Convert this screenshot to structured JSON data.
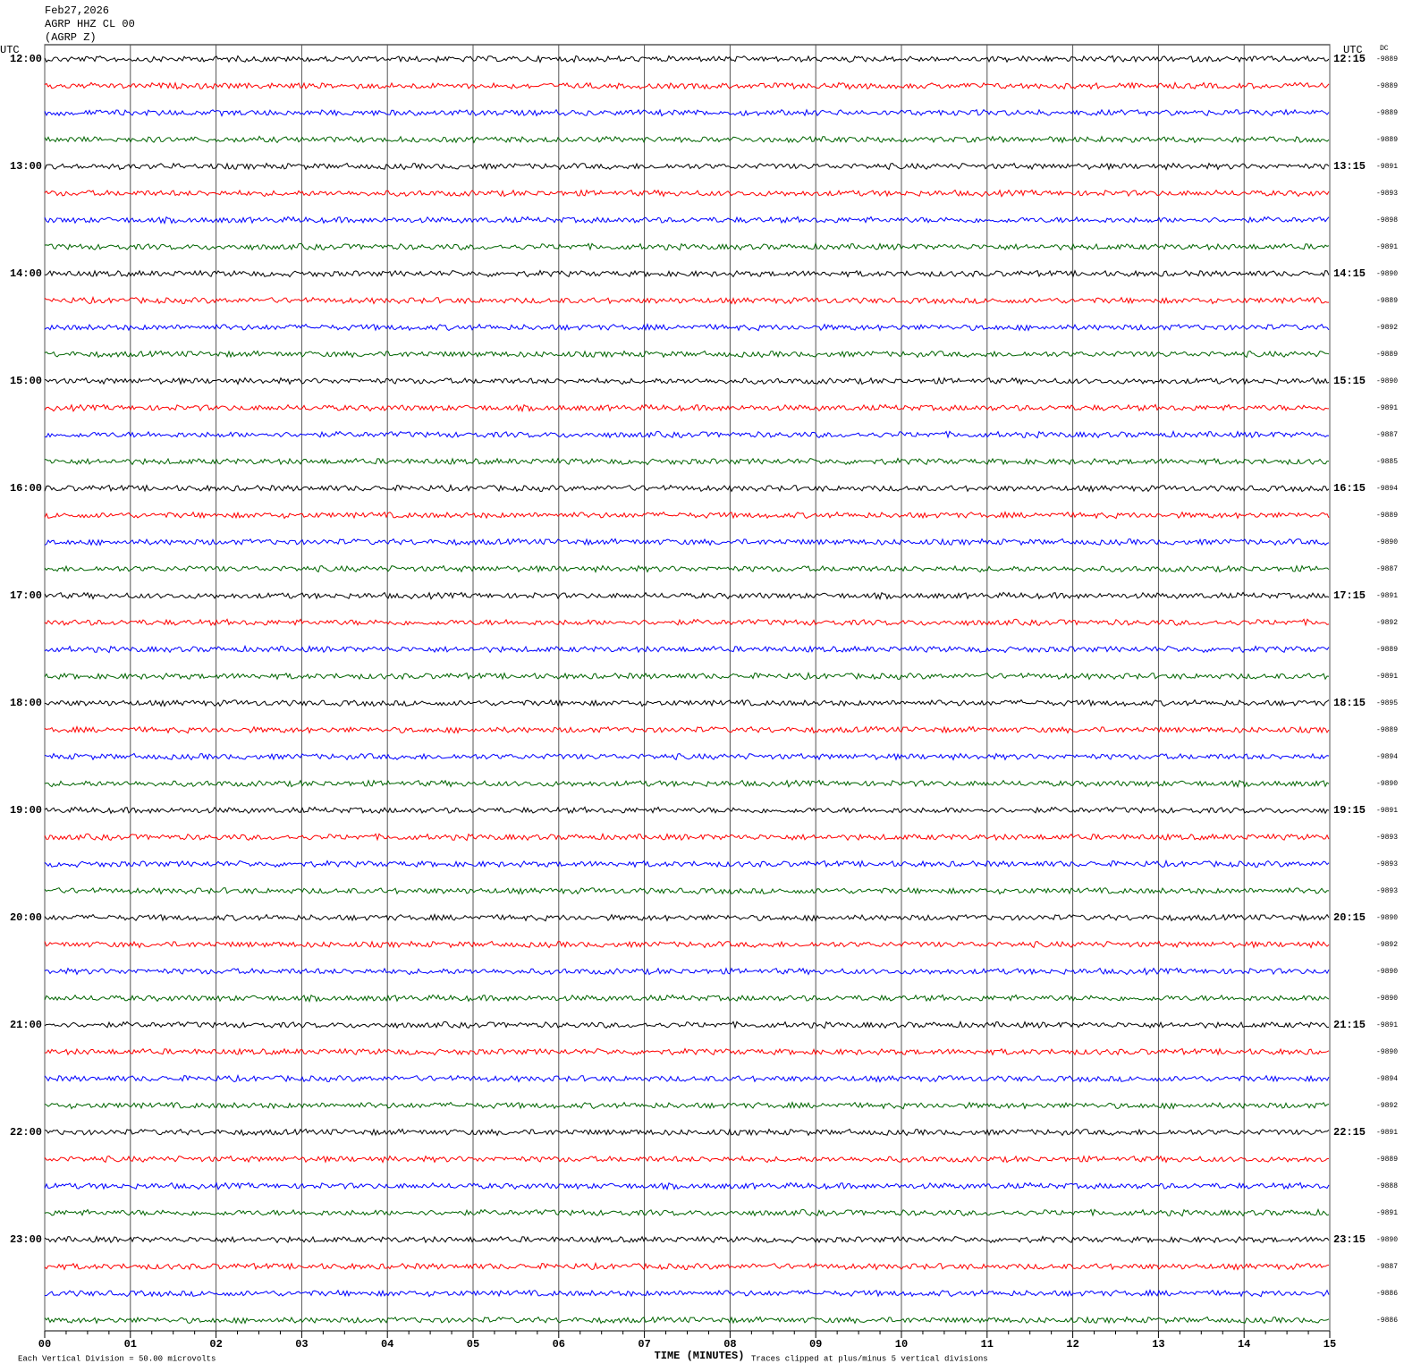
{
  "header": {
    "date": "Feb27,2026",
    "station": "AGRP HHZ CL 00",
    "channel": "(AGRP Z)"
  },
  "chart_data": {
    "type": "helicorder",
    "left_axis_title": "UTC",
    "right_axis_title": "UTC",
    "dc_title": "DC",
    "left_labels": [
      "12:00",
      "13:00",
      "14:00",
      "15:00",
      "16:00",
      "17:00",
      "18:00",
      "19:00",
      "20:00",
      "21:00",
      "22:00",
      "23:00"
    ],
    "right_labels": [
      "12:15",
      "13:15",
      "14:15",
      "15:15",
      "16:15",
      "17:15",
      "18:15",
      "19:15",
      "20:15",
      "21:15",
      "22:15",
      "23:15"
    ],
    "dc_values": [
      -9889,
      -9889,
      -9889,
      -9889,
      -9891,
      -9893,
      -9898,
      -9891,
      -9890,
      -9889,
      -9892,
      -9889,
      -9890,
      -9891,
      -9887,
      -9885,
      -9894,
      -9889,
      -9890,
      -9887,
      -9891,
      -9892,
      -9889,
      -9891,
      -9895,
      -9889,
      -9894,
      -9890,
      -9891,
      -9893,
      -9893,
      -9893,
      -9890,
      -9892,
      -9890,
      -9890,
      -9891,
      -9890,
      -9894,
      -9892,
      -9891,
      -9889,
      -9888,
      -9891,
      -9890,
      -9887,
      -9886,
      -9886
    ],
    "trace_colors": [
      "#000000",
      "#ff0000",
      "#0000ff",
      "#006400"
    ],
    "xlim": [
      0,
      15
    ],
    "xticks": [
      {
        "value": 0,
        "label": "00"
      },
      {
        "value": 1,
        "label": "01"
      },
      {
        "value": 2,
        "label": "02"
      },
      {
        "value": 3,
        "label": "03"
      },
      {
        "value": 4,
        "label": "04"
      },
      {
        "value": 5,
        "label": "05"
      },
      {
        "value": 6,
        "label": "06"
      },
      {
        "value": 7,
        "label": "07"
      },
      {
        "value": 8,
        "label": "08"
      },
      {
        "value": 9,
        "label": "09"
      },
      {
        "value": 10,
        "label": "10"
      },
      {
        "value": 11,
        "label": "11"
      },
      {
        "value": 12,
        "label": "12"
      },
      {
        "value": 13,
        "label": "13"
      },
      {
        "value": 14,
        "label": "14"
      },
      {
        "value": 15,
        "label": "15"
      }
    ],
    "xlabel": "TIME (MINUTES)",
    "scale_note": "Each Vertical Division =   50.00 microvolts",
    "clip_note": "Traces clipped at plus/minus 5 vertical divisions"
  }
}
